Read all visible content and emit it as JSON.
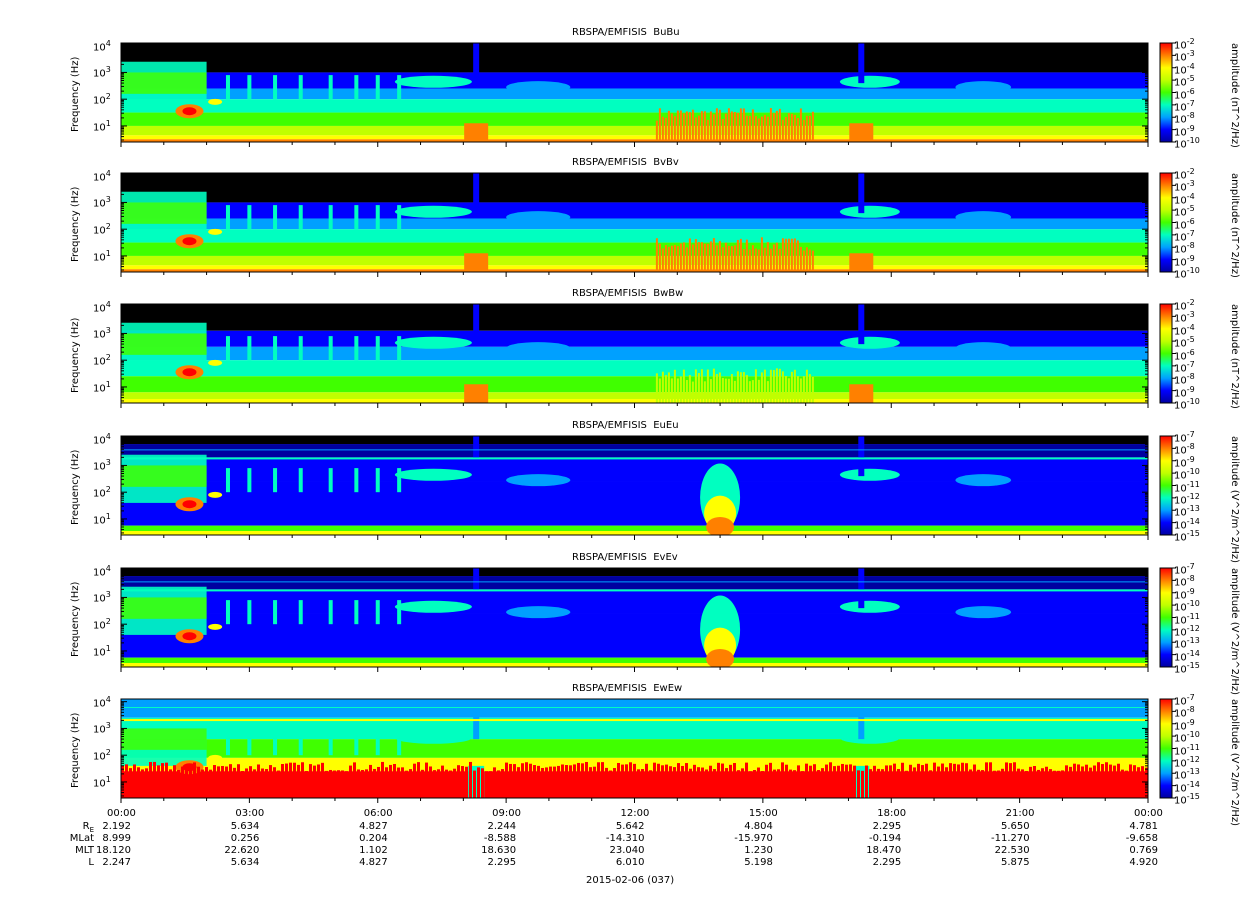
{
  "chart_data": {
    "type": "heatmap",
    "xlabel": "2015-02-06 (037)",
    "x_ticks": [
      "00:00",
      "03:00",
      "06:00",
      "09:00",
      "12:00",
      "15:00",
      "18:00",
      "21:00",
      "00:00"
    ],
    "ylabel": "Frequency (Hz)",
    "y_scale": "log",
    "y_ticks": [
      "10^1",
      "10^2",
      "10^3",
      "10^4"
    ],
    "colormap": [
      "#0000a0",
      "#0000ff",
      "#00a0ff",
      "#00ffc0",
      "#40ff00",
      "#c0ff00",
      "#ffff00",
      "#ff8000",
      "#ff0000"
    ],
    "panels": [
      {
        "title": "RBSPA/EMFISIS  BuBu",
        "colorbar_label": "amplitude (nT^2/Hz)",
        "cb_exps": [
          "-2",
          "-3",
          "-4",
          "-5",
          "-6",
          "-7",
          "-8",
          "-9",
          "-10"
        ]
      },
      {
        "title": "RBSPA/EMFISIS  BvBv",
        "colorbar_label": "amplitude (nT^2/Hz)",
        "cb_exps": [
          "-2",
          "-3",
          "-4",
          "-5",
          "-6",
          "-7",
          "-8",
          "-9",
          "-10"
        ]
      },
      {
        "title": "RBSPA/EMFISIS  BwBw",
        "colorbar_label": "amplitude (nT^2/Hz)",
        "cb_exps": [
          "-2",
          "-3",
          "-4",
          "-5",
          "-6",
          "-7",
          "-8",
          "-9",
          "-10"
        ]
      },
      {
        "title": "RBSPA/EMFISIS  EuEu",
        "colorbar_label": "amplitude (V^2/m^2/Hz)",
        "cb_exps": [
          "-7",
          "-8",
          "-9",
          "-10",
          "-11",
          "-12",
          "-13",
          "-14",
          "-15"
        ]
      },
      {
        "title": "RBSPA/EMFISIS  EvEv",
        "colorbar_label": "amplitude (V^2/m^2/Hz)",
        "cb_exps": [
          "-7",
          "-8",
          "-9",
          "-10",
          "-11",
          "-12",
          "-13",
          "-14",
          "-15"
        ]
      },
      {
        "title": "RBSPA/EMFISIS  EwEw",
        "colorbar_label": "amplitude (V^2/m^2/Hz)",
        "cb_exps": [
          "-7",
          "-8",
          "-9",
          "-10",
          "-11",
          "-12",
          "-13",
          "-14",
          "-15"
        ]
      }
    ],
    "ephemeris": [
      {
        "label": "RE",
        "values": [
          "2.192",
          "5.634",
          "4.827",
          "2.244",
          "5.642",
          "4.804",
          "2.295",
          "5.650",
          "4.781"
        ]
      },
      {
        "label": "MLat",
        "values": [
          "8.999",
          "0.256",
          "0.204",
          "-8.588",
          "-14.310",
          "-15.970",
          "-0.194",
          "-11.270",
          "-9.658"
        ]
      },
      {
        "label": "MLT",
        "values": [
          "18.120",
          "22.620",
          "1.102",
          "18.630",
          "23.040",
          "1.230",
          "18.470",
          "22.530",
          "0.769"
        ]
      },
      {
        "label": "L",
        "values": [
          "2.247",
          "5.634",
          "4.827",
          "2.295",
          "6.010",
          "5.198",
          "2.295",
          "5.875",
          "4.920"
        ]
      }
    ]
  }
}
